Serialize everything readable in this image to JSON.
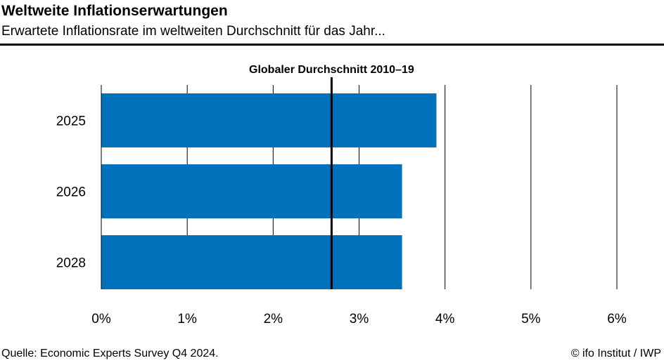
{
  "header": {
    "title": "Weltweite Inflationserwartungen",
    "subtitle": "Erwartete Inflationsrate im weltweiten Durchschnitt für das Jahr..."
  },
  "footer": {
    "source": "Quelle: Economic Experts Survey Q4 2024.",
    "credit": "© ifo Institut / IWP"
  },
  "chart_data": {
    "type": "bar",
    "orientation": "horizontal",
    "categories": [
      "2025",
      "2026",
      "2028"
    ],
    "values": [
      3.9,
      3.5,
      3.5
    ],
    "xlim": [
      0,
      6
    ],
    "xticks": [
      0,
      1,
      2,
      3,
      4,
      5,
      6
    ],
    "xtick_labels": [
      "0%",
      "1%",
      "2%",
      "3%",
      "4%",
      "5%",
      "6%"
    ],
    "bar_color": "#0072BC",
    "grid": true,
    "reference_line": {
      "label": "Globaler Durchschnitt 2010–19",
      "value": 2.68,
      "color": "#000000"
    }
  }
}
